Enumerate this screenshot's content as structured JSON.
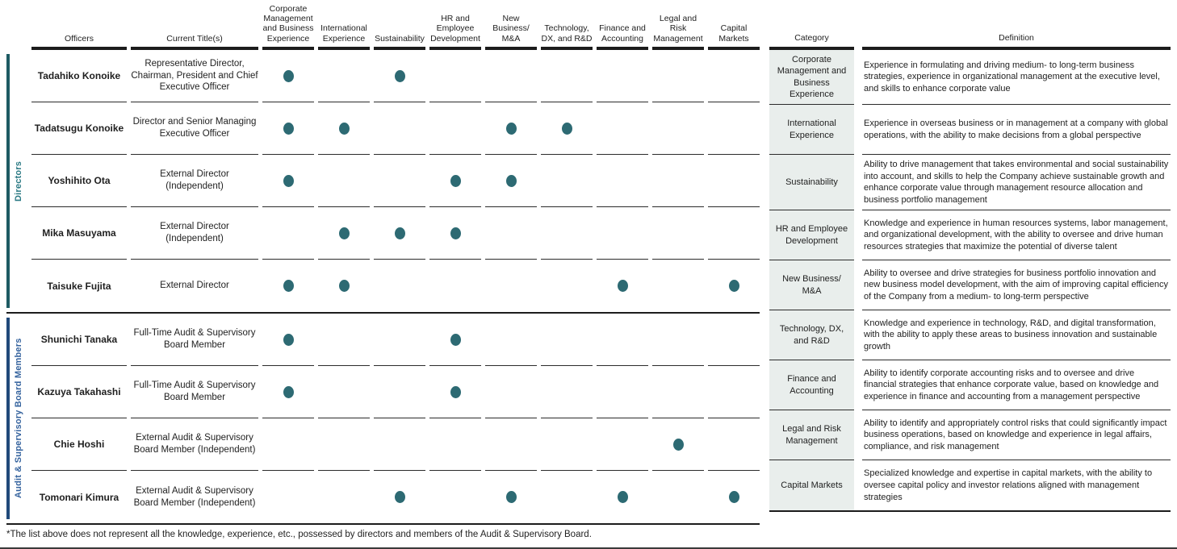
{
  "colors": {
    "dot": "#2d6a73",
    "directors-bar": "#1e5b63",
    "directors-text": "#2b7a84",
    "audit-bar": "#20497a",
    "audit-text": "#35639e",
    "cat-bg": "#e9eeec",
    "line-heavy": "#1c1c1c",
    "line-thin": "#2b2b2b"
  },
  "matrix": {
    "header": {
      "officers": "Officers",
      "current_titles": "Current Title(s)"
    },
    "skill_columns": [
      "Corporate Management and Business Experience",
      "International Experience",
      "Sustainability",
      "HR and Employee Development",
      "New Business/ M&A",
      "Technology, DX, and R&D",
      "Finance and Accounting",
      "Legal and Risk Management",
      "Capital Markets"
    ],
    "sections": [
      {
        "label": "Directors",
        "rows": [
          {
            "name": "Tadahiko Konoike",
            "title": "Representative Director, Chairman, President and Chief Executive Officer",
            "skills": [
              1,
              0,
              1,
              0,
              0,
              0,
              0,
              0,
              0
            ]
          },
          {
            "name": "Tadatsugu Konoike",
            "title": "Director and Senior Managing Executive Officer",
            "skills": [
              1,
              1,
              0,
              0,
              1,
              1,
              0,
              0,
              0
            ]
          },
          {
            "name": "Yoshihito Ota",
            "title": "External Director (Independent)",
            "skills": [
              1,
              0,
              0,
              1,
              1,
              0,
              0,
              0,
              0
            ]
          },
          {
            "name": "Mika Masuyama",
            "title": "External Director (Independent)",
            "skills": [
              0,
              1,
              1,
              1,
              0,
              0,
              0,
              0,
              0
            ]
          },
          {
            "name": "Taisuke Fujita",
            "title": "External Director",
            "skills": [
              1,
              1,
              0,
              0,
              0,
              0,
              1,
              0,
              1
            ]
          }
        ]
      },
      {
        "label": "Audit & Supervisory Board Members",
        "rows": [
          {
            "name": "Shunichi Tanaka",
            "title": "Full-Time Audit & Supervisory Board Member",
            "skills": [
              1,
              0,
              0,
              1,
              0,
              0,
              0,
              0,
              0
            ]
          },
          {
            "name": "Kazuya Takahashi",
            "title": "Full-Time Audit & Supervisory Board Member",
            "skills": [
              1,
              0,
              0,
              1,
              0,
              0,
              0,
              0,
              0
            ]
          },
          {
            "name": "Chie Hoshi",
            "title": "External Audit & Supervisory Board Member (Independent)",
            "skills": [
              0,
              0,
              0,
              0,
              0,
              0,
              0,
              1,
              0
            ]
          },
          {
            "name": "Tomonari Kimura",
            "title": "External Audit & Supervisory Board Member (Independent)",
            "skills": [
              0,
              0,
              1,
              0,
              1,
              0,
              1,
              0,
              1
            ]
          }
        ]
      }
    ]
  },
  "definitions": {
    "header": {
      "category": "Category",
      "definition": "Definition"
    },
    "rows": [
      {
        "category": "Corporate Management and Business Experience",
        "definition": "Experience in formulating and driving medium- to long-term business strategies, experience in organizational management at the executive level, and skills to enhance corporate value"
      },
      {
        "category": "International Experience",
        "definition": "Experience in overseas business or in management at a company with global operations, with the ability to make decisions from a global perspective"
      },
      {
        "category": "Sustainability",
        "definition": "Ability to drive management that takes environmental and social sustainability into account, and skills to help the Company achieve sustainable growth and enhance corporate value through management resource allocation and business portfolio management"
      },
      {
        "category": "HR and Employee Development",
        "definition": "Knowledge and experience in human resources systems, labor management, and organizational development, with the ability to oversee and drive human resources strategies that maximize the potential of diverse talent"
      },
      {
        "category": "New Business/ M&A",
        "definition": "Ability to oversee and drive strategies for business portfolio innovation and new business model development, with the aim of improving capital efficiency of the Company from a medium- to long-term perspective"
      },
      {
        "category": "Technology, DX, and R&D",
        "definition": "Knowledge and experience in technology, R&D, and digital transformation, with the ability to apply these areas to business innovation and sustainable growth"
      },
      {
        "category": "Finance and Accounting",
        "definition": "Ability to identify corporate accounting risks and to oversee and drive financial strategies that enhance corporate value, based on knowledge and experience in finance and accounting from a management perspective"
      },
      {
        "category": "Legal and Risk Management",
        "definition": "Ability to identify and appropriately control risks that could significantly impact business operations, based on knowledge and experience in legal affairs, compliance, and risk management"
      },
      {
        "category": "Capital Markets",
        "definition": "Specialized knowledge and expertise in capital markets, with the ability to oversee capital policy and investor relations aligned with management strategies"
      }
    ]
  },
  "footnote": "*The list above does not represent all the knowledge, experience, etc., possessed by directors and members of the Audit & Supervisory Board."
}
